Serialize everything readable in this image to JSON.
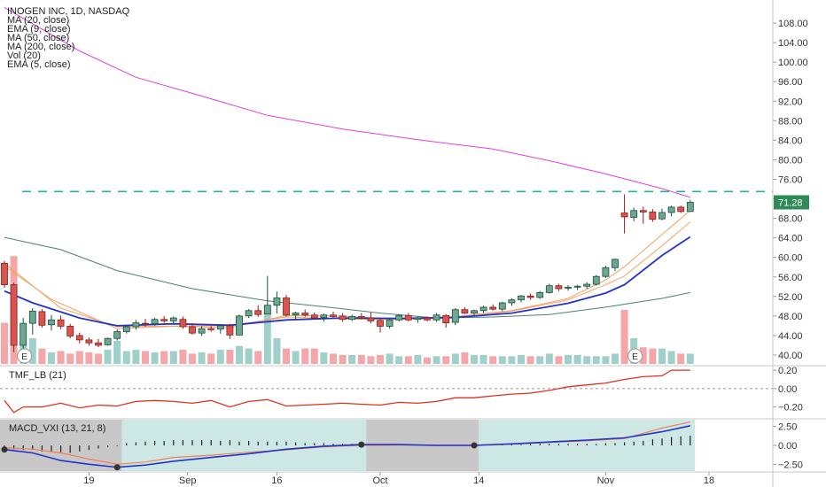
{
  "chart_data": {
    "type": "candlestick",
    "title": "INOGEN INC, 1D, NASDAQ",
    "indicators": [
      "MA (20, close)",
      "EMA (9, close)",
      "MA (50, close)",
      "MA (200, close)",
      "Vol (20)",
      "EMA (5, close)"
    ],
    "price_axis": {
      "ticks": [
        "108.00",
        "104.00",
        "100.00",
        "96.00",
        "92.00",
        "88.00",
        "84.00",
        "80.00",
        "76.00",
        "72.00",
        "68.00",
        "64.00",
        "60.00",
        "56.00",
        "52.00",
        "48.00",
        "44.00",
        "40.00"
      ],
      "range": [
        38,
        112
      ],
      "last_price_label": "71.28",
      "last_price": 71.28
    },
    "resistance_level": 73.5,
    "x_axis": {
      "labels": [
        "19",
        "Sep",
        "16",
        "Oct",
        "14",
        "Nov",
        "18"
      ]
    },
    "candles": [
      [
        58.8,
        59.3,
        53.8,
        54.4
      ],
      [
        54.4,
        54.8,
        40.6,
        42.0
      ],
      [
        42.0,
        47.6,
        40.9,
        46.5
      ],
      [
        46.5,
        49.6,
        44.2,
        49.0
      ],
      [
        48.9,
        49.4,
        45.6,
        46.1
      ],
      [
        46.2,
        48.2,
        45.0,
        47.2
      ],
      [
        47.2,
        48.1,
        45.3,
        45.9
      ],
      [
        45.9,
        46.4,
        43.4,
        43.9
      ],
      [
        44.0,
        44.6,
        42.4,
        43.1
      ],
      [
        43.1,
        43.6,
        41.9,
        42.5
      ],
      [
        42.5,
        43.3,
        41.6,
        42.0
      ],
      [
        42.1,
        43.6,
        41.9,
        43.4
      ],
      [
        43.4,
        45.2,
        43.0,
        44.8
      ],
      [
        44.8,
        46.2,
        44.4,
        45.8
      ],
      [
        45.8,
        47.2,
        45.2,
        46.6
      ],
      [
        46.5,
        47.4,
        45.8,
        46.4
      ],
      [
        46.4,
        47.6,
        46.0,
        47.3
      ],
      [
        47.3,
        48.0,
        46.6,
        47.0
      ],
      [
        47.0,
        47.9,
        46.5,
        47.6
      ],
      [
        47.3,
        47.9,
        45.4,
        45.8
      ],
      [
        45.8,
        46.5,
        44.2,
        44.5
      ],
      [
        44.5,
        45.9,
        43.9,
        45.4
      ],
      [
        45.4,
        45.9,
        44.8,
        45.2
      ],
      [
        45.3,
        46.3,
        44.4,
        46.0
      ],
      [
        46.0,
        46.4,
        43.3,
        44.1
      ],
      [
        44.1,
        48.3,
        44.1,
        48.0
      ],
      [
        48.0,
        49.4,
        47.6,
        49.1
      ],
      [
        49.1,
        50.2,
        47.8,
        48.3
      ],
      [
        48.4,
        56.2,
        48.4,
        50.2
      ],
      [
        50.2,
        53.0,
        48.5,
        51.7
      ],
      [
        51.7,
        52.3,
        47.8,
        48.2
      ],
      [
        48.2,
        48.9,
        47.2,
        48.6
      ],
      [
        48.6,
        49.3,
        47.8,
        48.2
      ],
      [
        48.2,
        48.7,
        47.4,
        47.6
      ],
      [
        47.7,
        48.5,
        46.9,
        48.2
      ],
      [
        48.2,
        48.9,
        47.6,
        47.9
      ],
      [
        48.0,
        48.6,
        46.8,
        47.3
      ],
      [
        47.3,
        48.3,
        47.0,
        47.9
      ],
      [
        47.9,
        48.6,
        47.3,
        47.6
      ],
      [
        47.6,
        48.7,
        46.5,
        47.0
      ],
      [
        47.1,
        47.6,
        44.6,
        45.9
      ],
      [
        45.9,
        47.6,
        45.4,
        47.2
      ],
      [
        47.2,
        48.4,
        46.9,
        48.1
      ],
      [
        48.1,
        48.6,
        46.9,
        47.2
      ],
      [
        47.3,
        47.9,
        46.6,
        47.6
      ],
      [
        47.6,
        47.9,
        46.9,
        47.2
      ],
      [
        47.2,
        48.6,
        46.8,
        48.2
      ],
      [
        48.1,
        48.4,
        45.6,
        46.6
      ],
      [
        46.7,
        49.6,
        46.1,
        49.3
      ],
      [
        49.3,
        49.8,
        48.4,
        48.6
      ],
      [
        48.6,
        49.3,
        47.9,
        49.1
      ],
      [
        49.1,
        50.1,
        48.6,
        49.8
      ],
      [
        49.8,
        50.4,
        49.1,
        49.4
      ],
      [
        49.4,
        50.9,
        49.0,
        50.7
      ],
      [
        50.7,
        51.6,
        50.1,
        51.3
      ],
      [
        51.3,
        52.3,
        50.8,
        52.1
      ],
      [
        52.1,
        52.6,
        51.3,
        51.8
      ],
      [
        51.8,
        53.1,
        51.5,
        52.8
      ],
      [
        52.8,
        54.6,
        52.6,
        54.2
      ],
      [
        54.2,
        54.6,
        53.1,
        53.6
      ],
      [
        53.7,
        54.3,
        53.2,
        53.9
      ],
      [
        53.9,
        54.4,
        53.3,
        54.1
      ],
      [
        54.1,
        54.9,
        53.6,
        54.5
      ],
      [
        54.5,
        56.4,
        54.2,
        56.1
      ],
      [
        56.1,
        58.3,
        55.8,
        57.9
      ],
      [
        57.9,
        59.8,
        57.2,
        59.6
      ],
      [
        69.1,
        72.9,
        64.9,
        68.3
      ],
      [
        68.2,
        70.2,
        67.4,
        69.6
      ],
      [
        69.6,
        70.4,
        66.9,
        69.3
      ],
      [
        69.3,
        69.9,
        67.3,
        67.8
      ],
      [
        67.9,
        70.0,
        67.6,
        69.2
      ],
      [
        69.2,
        70.6,
        68.4,
        70.3
      ],
      [
        70.3,
        70.6,
        69.1,
        69.4
      ],
      [
        69.4,
        71.8,
        69.3,
        71.28
      ]
    ],
    "moving_averages": {
      "ma_20": [
        [
          0,
          58.2
        ],
        [
          5,
          51.4
        ],
        [
          12,
          45.4
        ],
        [
          18,
          45.9
        ],
        [
          24,
          45.6
        ],
        [
          30,
          48.1
        ],
        [
          36,
          48.0
        ],
        [
          42,
          47.3
        ],
        [
          48,
          47.6
        ],
        [
          54,
          49.0
        ],
        [
          60,
          51.3
        ],
        [
          64,
          54.4
        ],
        [
          66,
          56.2
        ],
        [
          70,
          62.4
        ],
        [
          73,
          67.3
        ]
      ],
      "ema_9": [
        [
          0,
          53.1
        ],
        [
          3,
          50.7
        ],
        [
          8,
          47.6
        ],
        [
          12,
          46.0
        ],
        [
          18,
          46.4
        ],
        [
          24,
          46.1
        ],
        [
          30,
          47.2
        ],
        [
          36,
          47.6
        ],
        [
          42,
          47.5
        ],
        [
          48,
          47.7
        ],
        [
          54,
          48.6
        ],
        [
          60,
          50.6
        ],
        [
          64,
          52.7
        ],
        [
          66,
          54.4
        ],
        [
          70,
          60.4
        ],
        [
          73,
          64.2
        ]
      ],
      "ma_50": [
        [
          0,
          64.1
        ],
        [
          6,
          61.6
        ],
        [
          12,
          57.3
        ],
        [
          20,
          53.6
        ],
        [
          28,
          51.1
        ],
        [
          34,
          49.9
        ],
        [
          40,
          48.6
        ],
        [
          46,
          47.6
        ],
        [
          52,
          47.8
        ],
        [
          58,
          48.3
        ],
        [
          64,
          49.8
        ],
        [
          70,
          51.6
        ],
        [
          73,
          52.8
        ]
      ],
      "ma_200": [
        [
          0,
          111.2
        ],
        [
          8,
          102.3
        ],
        [
          14,
          96.9
        ],
        [
          20,
          93.6
        ],
        [
          28,
          89.1
        ],
        [
          36,
          86.3
        ],
        [
          44,
          84.1
        ],
        [
          52,
          82.2
        ],
        [
          58,
          79.8
        ],
        [
          64,
          77.1
        ],
        [
          70,
          74.1
        ],
        [
          73,
          72.3
        ]
      ],
      "ema_5": [
        [
          0,
          58.8
        ],
        [
          6,
          49.6
        ],
        [
          12,
          45.8
        ],
        [
          18,
          45.9
        ],
        [
          24,
          46.0
        ],
        [
          30,
          47.8
        ],
        [
          36,
          47.4
        ],
        [
          42,
          47.3
        ],
        [
          48,
          47.9
        ],
        [
          54,
          49.1
        ],
        [
          60,
          51.6
        ],
        [
          64,
          55.4
        ],
        [
          66,
          58.1
        ],
        [
          70,
          64.7
        ],
        [
          73,
          69.6
        ]
      ]
    },
    "volume": [
      0.32,
      0.84,
      0.18,
      0.2,
      0.12,
      0.09,
      0.1,
      0.08,
      0.1,
      0.09,
      0.08,
      0.11,
      0.18,
      0.1,
      0.11,
      0.1,
      0.09,
      0.1,
      0.1,
      0.11,
      0.08,
      0.09,
      0.08,
      0.11,
      0.11,
      0.14,
      0.12,
      0.1,
      0.42,
      0.2,
      0.12,
      0.1,
      0.12,
      0.12,
      0.09,
      0.08,
      0.07,
      0.07,
      0.07,
      0.06,
      0.07,
      0.08,
      0.06,
      0.06,
      0.07,
      0.05,
      0.06,
      0.06,
      0.08,
      0.09,
      0.07,
      0.07,
      0.06,
      0.06,
      0.06,
      0.07,
      0.06,
      0.06,
      0.08,
      0.06,
      0.07,
      0.07,
      0.06,
      0.06,
      0.06,
      0.08,
      0.42,
      0.2,
      0.13,
      0.12,
      0.12,
      0.1,
      0.08,
      0.08
    ],
    "tmf": {
      "label": "TMF_LB (21)",
      "ticks": [
        "0.20",
        "0.00",
        "−0.20"
      ],
      "range": [
        -0.32,
        0.24
      ],
      "values": [
        [
          0,
          -0.13
        ],
        [
          1,
          -0.26
        ],
        [
          2,
          -0.2
        ],
        [
          4,
          -0.2
        ],
        [
          6,
          -0.16
        ],
        [
          8,
          -0.21
        ],
        [
          10,
          -0.18
        ],
        [
          12,
          -0.19
        ],
        [
          14,
          -0.14
        ],
        [
          16,
          -0.13
        ],
        [
          18,
          -0.14
        ],
        [
          20,
          -0.16
        ],
        [
          22,
          -0.13
        ],
        [
          24,
          -0.2
        ],
        [
          26,
          -0.14
        ],
        [
          28,
          -0.12
        ],
        [
          30,
          -0.19
        ],
        [
          32,
          -0.18
        ],
        [
          34,
          -0.17
        ],
        [
          36,
          -0.16
        ],
        [
          38,
          -0.17
        ],
        [
          40,
          -0.18
        ],
        [
          42,
          -0.15
        ],
        [
          44,
          -0.16
        ],
        [
          46,
          -0.14
        ],
        [
          48,
          -0.1
        ],
        [
          50,
          -0.1
        ],
        [
          52,
          -0.08
        ],
        [
          54,
          -0.06
        ],
        [
          56,
          -0.05
        ],
        [
          58,
          -0.02
        ],
        [
          60,
          0.02
        ],
        [
          62,
          0.04
        ],
        [
          64,
          0.06
        ],
        [
          66,
          0.1
        ],
        [
          68,
          0.13
        ],
        [
          70,
          0.14
        ],
        [
          71,
          0.2
        ],
        [
          73,
          0.2
        ]
      ]
    },
    "macd": {
      "label": "MACD_VXI (13, 21, 8)",
      "ticks": [
        "2.50",
        "0.00",
        "−2.50"
      ],
      "range": [
        -3.4,
        3.4
      ],
      "regions": [
        {
          "from": -0.5,
          "to": 12.5,
          "state": "bearish"
        },
        {
          "from": 12.5,
          "to": 38.5,
          "state": "bullish"
        },
        {
          "from": 38.5,
          "to": 50.5,
          "state": "bearish"
        },
        {
          "from": 50.5,
          "to": 73.5,
          "state": "bullish"
        }
      ],
      "crossovers": [
        0,
        12,
        38,
        50
      ],
      "macd_line": [
        [
          0,
          -0.55
        ],
        [
          3,
          -1.0
        ],
        [
          6,
          -2.0
        ],
        [
          9,
          -2.5
        ],
        [
          12,
          -2.9
        ],
        [
          15,
          -2.6
        ],
        [
          18,
          -2.1
        ],
        [
          22,
          -1.6
        ],
        [
          26,
          -1.1
        ],
        [
          30,
          -0.5
        ],
        [
          34,
          -0.1
        ],
        [
          38,
          0.1
        ],
        [
          42,
          0.1
        ],
        [
          46,
          0.0
        ],
        [
          50,
          0.0
        ],
        [
          54,
          0.2
        ],
        [
          58,
          0.45
        ],
        [
          62,
          0.7
        ],
        [
          66,
          1.0
        ],
        [
          70,
          1.8
        ],
        [
          73,
          2.6
        ]
      ],
      "signal_line": [
        [
          0,
          -0.3
        ],
        [
          3,
          -0.5
        ],
        [
          6,
          -1.0
        ],
        [
          9,
          -1.8
        ],
        [
          12,
          -2.5
        ],
        [
          15,
          -2.2
        ],
        [
          18,
          -1.6
        ],
        [
          22,
          -1.3
        ],
        [
          26,
          -0.9
        ],
        [
          30,
          -0.6
        ],
        [
          34,
          -0.2
        ],
        [
          38,
          0.0
        ],
        [
          42,
          0.05
        ],
        [
          46,
          0.05
        ],
        [
          50,
          0.05
        ],
        [
          54,
          0.15
        ],
        [
          58,
          0.4
        ],
        [
          62,
          0.6
        ],
        [
          66,
          0.9
        ],
        [
          70,
          2.3
        ],
        [
          73,
          3.1
        ]
      ],
      "histogram": [
        -0.5,
        -0.5,
        -0.6,
        -0.6,
        -0.8,
        -0.8,
        -0.9,
        -1.0,
        -0.8,
        -0.6,
        -0.4,
        -0.2,
        -0.1,
        0.3,
        0.4,
        0.5,
        0.6,
        0.6,
        0.7,
        0.7,
        0.7,
        0.7,
        0.7,
        0.6,
        0.7,
        0.5,
        0.6,
        0.5,
        0.5,
        0.5,
        0.5,
        0.4,
        0.3,
        0.3,
        0.3,
        0.2,
        0.2,
        0.2,
        0.2,
        0.1,
        0.1,
        0.1,
        0.1,
        0.1,
        0.1,
        0.1,
        0.1,
        0.1,
        0.1,
        0.1,
        0.1,
        0.1,
        0.1,
        0.1,
        0.1,
        0.1,
        0.2,
        0.2,
        0.2,
        0.2,
        0.2,
        0.2,
        0.2,
        0.2,
        0.3,
        0.3,
        0.4,
        0.5,
        0.6,
        0.8,
        0.9,
        1.1,
        1.2,
        1.3
      ]
    },
    "colors": {
      "up": "#6aa98f",
      "up_border": "#1d4d3a",
      "down": "#d9534f",
      "down_border": "#8a1f1b",
      "vol_up": "#9fd0c9",
      "vol_down": "#f4a6a8",
      "ma_20": "#f4a261",
      "ema_9": "#2233cc",
      "ma_50": "#4e7e7a",
      "ma_200": "#e040e0",
      "ema_5": "#f4a261",
      "resistance": "#20b2aa",
      "tmf": "#e03020",
      "macd_line": "#2233cc",
      "signal_line": "#f08050",
      "macd_bull": "#cde8e4",
      "macd_bear": "#c8c8c8",
      "last_price_bg": "#2e8b57"
    }
  }
}
